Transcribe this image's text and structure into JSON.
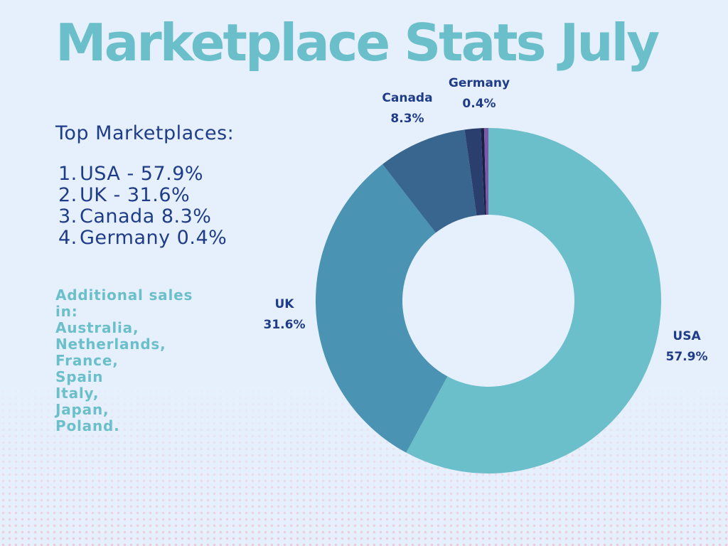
{
  "title": "Marketplace Stats July",
  "top_marketplaces": {
    "heading": "Top Marketplaces:",
    "items": [
      {
        "num": "1.",
        "text": "USA - 57.9%"
      },
      {
        "num": "2.",
        "text": "UK - 31.6%"
      },
      {
        "num": "3.",
        "text": "Canada 8.3%"
      },
      {
        "num": "4.",
        "text": "Germany 0.4%"
      }
    ]
  },
  "additional_sales": {
    "lines": [
      "Additional sales",
      "in:",
      "Australia,",
      "Netherlands,",
      "France,",
      "Spain",
      "Italy,",
      "Japan,",
      "Poland."
    ]
  },
  "chart_data": {
    "type": "pie",
    "style": "donut",
    "slices": [
      {
        "label": "USA",
        "value": 57.9,
        "display": "57.9%",
        "color": "#6bbfca"
      },
      {
        "label": "UK",
        "value": 31.6,
        "display": "31.6%",
        "color": "#4b93b3"
      },
      {
        "label": "Canada",
        "value": 8.3,
        "display": "8.3%",
        "color": "#39668f"
      },
      {
        "label": "",
        "value": 1.5,
        "display": "",
        "color": "#2b3f6e"
      },
      {
        "label": "",
        "value": 0.3,
        "display": "",
        "color": "#1a1f45"
      },
      {
        "label": "Germany",
        "value": 0.4,
        "display": "0.4%",
        "color": "#7a5aa6"
      }
    ]
  },
  "colors": {
    "background": "#e6f0fc",
    "title": "#6bbfca",
    "text_dark": "#1f3c88",
    "text_accent": "#6bbfca"
  }
}
